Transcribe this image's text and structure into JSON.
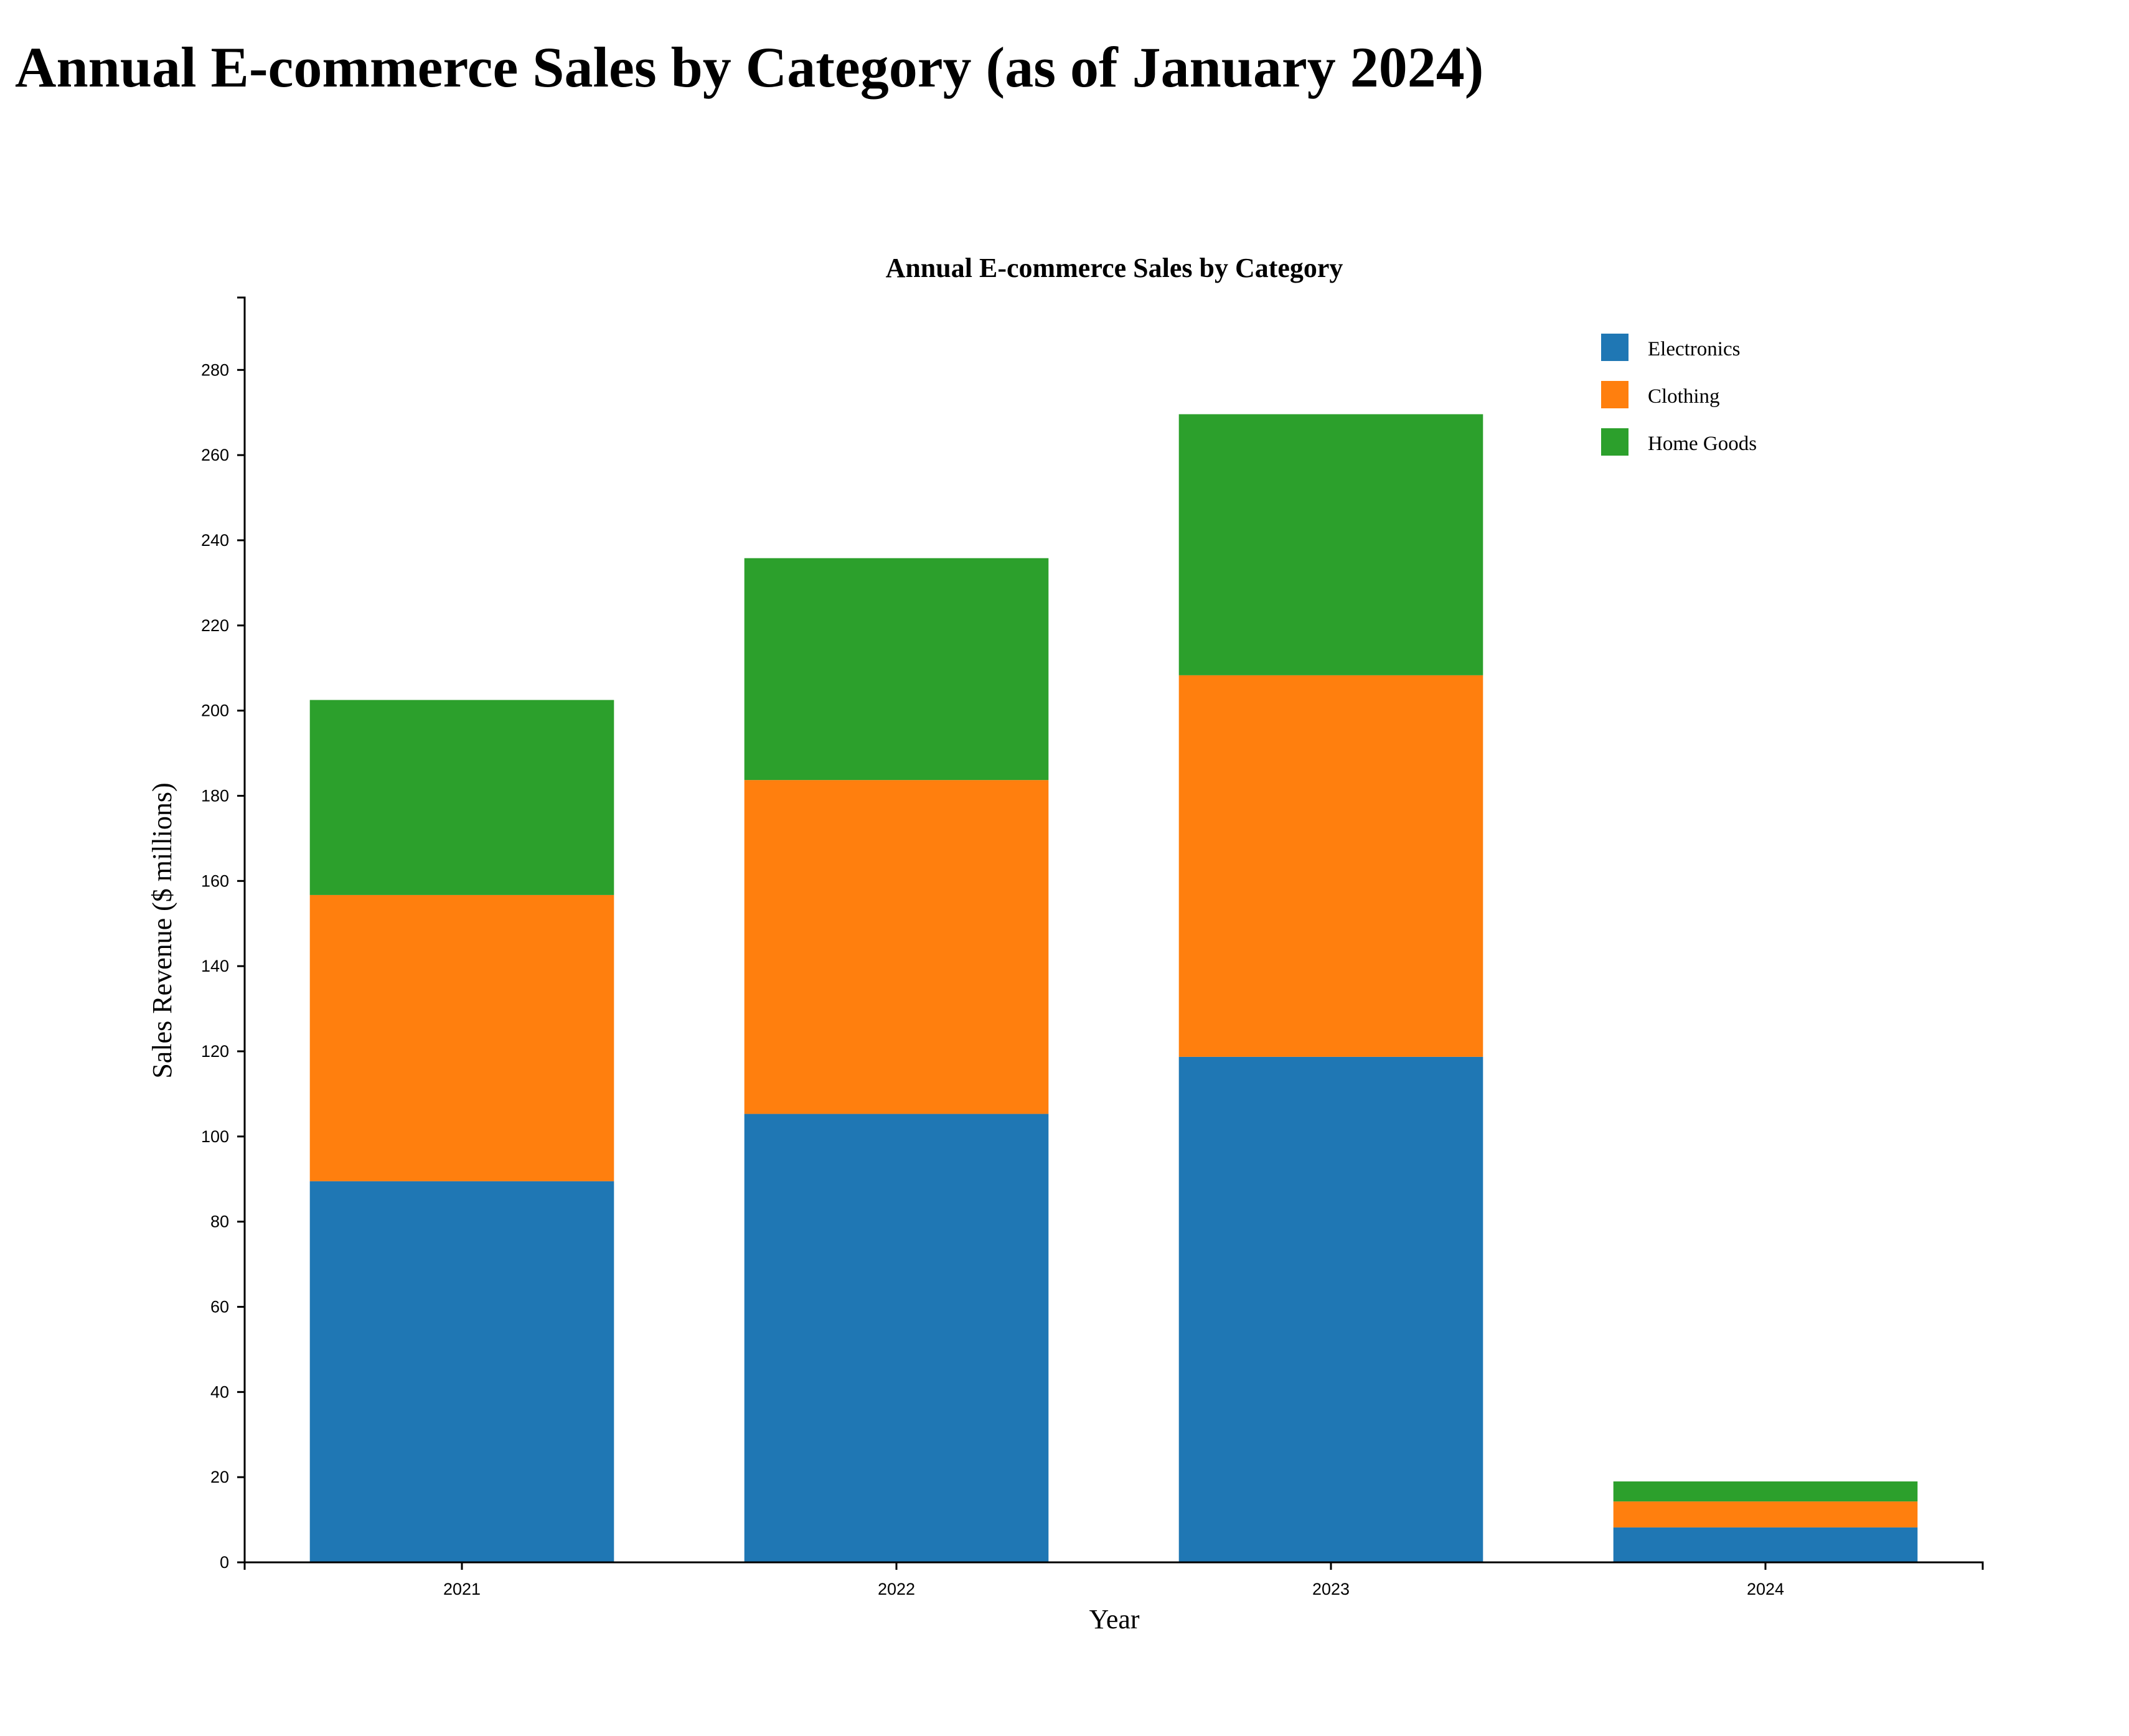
{
  "page": {
    "heading": "Annual E-commerce Sales by Category (as of January 2024)"
  },
  "chart_data": {
    "type": "bar",
    "stacked": true,
    "title": "Annual E-commerce Sales by Category",
    "xlabel": "Year",
    "ylabel": "Sales Revenue ($ millions)",
    "categories": [
      "2021",
      "2022",
      "2023",
      "2024"
    ],
    "series": [
      {
        "name": "Electronics",
        "color": "#1f77b4",
        "values": [
          89.5,
          105.3,
          118.7,
          8.2
        ]
      },
      {
        "name": "Clothing",
        "color": "#ff7f0e",
        "values": [
          67.2,
          78.4,
          89.6,
          6.1
        ]
      },
      {
        "name": "Home Goods",
        "color": "#2ca02c",
        "values": [
          45.8,
          52.1,
          61.3,
          4.7
        ]
      }
    ],
    "ylim": [
      0,
      297
    ],
    "yticks": [
      0,
      20,
      40,
      60,
      80,
      100,
      120,
      140,
      160,
      180,
      200,
      220,
      240,
      260,
      280
    ],
    "grid": false,
    "legend_position": "top-right"
  }
}
